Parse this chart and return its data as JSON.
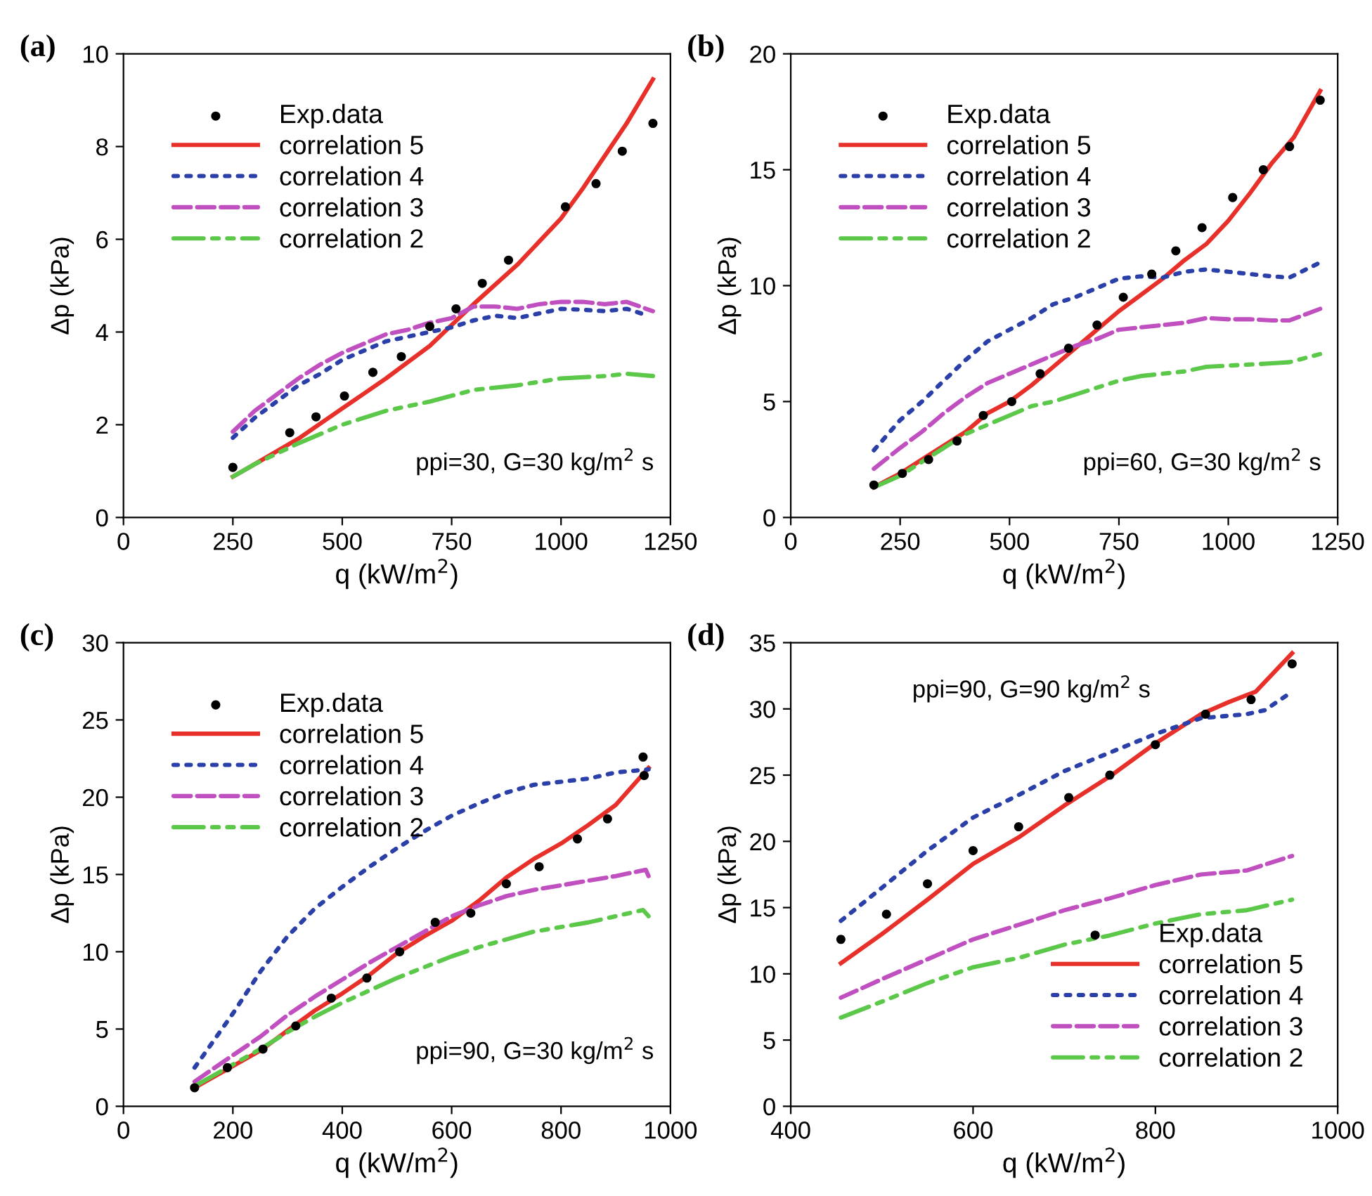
{
  "chart_data": [
    {
      "type": "line",
      "title": "(a)",
      "xlabel": "q (kW/m$^{2}$)",
      "ylabel": "Δp (kPa)",
      "xlim": [
        0,
        1250
      ],
      "xticks": [
        0,
        250,
        500,
        750,
        1000,
        1250
      ],
      "ylim": [
        0,
        10
      ],
      "yticks": [
        0,
        2,
        4,
        6,
        8,
        10
      ],
      "grid": false,
      "legend": "top left",
      "annotations": [
        "ppi=30, G=30 kg/m$^{2}$ s"
      ],
      "series": [
        {
          "name": "Exp.data",
          "type": "scatter",
          "marker": "circle",
          "color": "#000000",
          "x": [
            250,
            380,
            440,
            505,
            570,
            635,
            700,
            760,
            820,
            880,
            1010,
            1080,
            1140,
            1210
          ],
          "values": [
            1.08,
            1.83,
            2.17,
            2.62,
            3.13,
            3.47,
            4.12,
            4.5,
            5.05,
            5.55,
            6.7,
            7.2,
            7.9,
            8.5
          ]
        },
        {
          "name": "correlation 5",
          "line_style": "solid",
          "color": "#e8302a",
          "x": [
            250,
            300,
            400,
            500,
            600,
            700,
            800,
            900,
            1000,
            1050,
            1100,
            1150,
            1210
          ],
          "values": [
            0.88,
            1.15,
            1.7,
            2.35,
            3.0,
            3.7,
            4.6,
            5.45,
            6.45,
            7.1,
            7.8,
            8.5,
            9.45
          ]
        },
        {
          "name": "correlation 4",
          "line_style": "dotted",
          "color": "#2b3fa8",
          "x": [
            250,
            300,
            350,
            400,
            450,
            500,
            550,
            600,
            650,
            700,
            750,
            800,
            850,
            900,
            950,
            1000,
            1050,
            1100,
            1150,
            1200
          ],
          "values": [
            1.72,
            2.15,
            2.5,
            2.85,
            3.1,
            3.4,
            3.6,
            3.8,
            3.9,
            4.0,
            4.1,
            4.25,
            4.35,
            4.3,
            4.4,
            4.5,
            4.48,
            4.45,
            4.5,
            4.35
          ]
        },
        {
          "name": "correlation 3",
          "line_style": "dashed",
          "color": "#c050c0",
          "x": [
            250,
            300,
            350,
            400,
            450,
            500,
            550,
            600,
            650,
            700,
            750,
            800,
            850,
            900,
            950,
            1000,
            1050,
            1100,
            1150,
            1210
          ],
          "values": [
            1.85,
            2.3,
            2.65,
            3.0,
            3.3,
            3.55,
            3.75,
            3.95,
            4.05,
            4.2,
            4.3,
            4.55,
            4.55,
            4.5,
            4.6,
            4.65,
            4.65,
            4.6,
            4.65,
            4.45
          ]
        },
        {
          "name": "correlation 2",
          "line_style": "dashdotdot",
          "color": "#5cc84a",
          "x": [
            250,
            300,
            400,
            500,
            600,
            700,
            800,
            900,
            1000,
            1100,
            1150,
            1210
          ],
          "values": [
            0.88,
            1.15,
            1.6,
            2.0,
            2.3,
            2.5,
            2.75,
            2.85,
            3.0,
            3.05,
            3.1,
            3.05
          ]
        }
      ]
    },
    {
      "type": "line",
      "title": "(b)",
      "xlabel": "q (kW/m$^{2}$)",
      "ylabel": "Δp (kPa)",
      "xlim": [
        0,
        1250
      ],
      "xticks": [
        0,
        250,
        500,
        750,
        1000,
        1250
      ],
      "ylim": [
        0,
        20
      ],
      "yticks": [
        0,
        5,
        10,
        15,
        20
      ],
      "grid": false,
      "legend": "top left",
      "annotations": [
        "ppi=60, G=30 kg/m$^{2}$ s"
      ],
      "series": [
        {
          "name": "Exp.data",
          "type": "scatter",
          "marker": "circle",
          "color": "#000000",
          "x": [
            190,
            255,
            315,
            380,
            440,
            505,
            570,
            635,
            700,
            760,
            825,
            880,
            940,
            1010,
            1080,
            1140,
            1210
          ],
          "values": [
            1.4,
            1.9,
            2.5,
            3.3,
            4.4,
            5.0,
            6.2,
            7.3,
            8.3,
            9.5,
            10.5,
            11.5,
            12.5,
            13.8,
            15.0,
            16.0,
            18.0
          ]
        },
        {
          "name": "correlation 5",
          "line_style": "solid",
          "color": "#e8302a",
          "x": [
            190,
            250,
            300,
            400,
            450,
            500,
            550,
            600,
            650,
            700,
            750,
            800,
            850,
            900,
            950,
            1000,
            1050,
            1100,
            1150,
            1210
          ],
          "values": [
            1.3,
            1.9,
            2.5,
            3.7,
            4.5,
            5.0,
            5.7,
            6.5,
            7.3,
            8.1,
            8.9,
            9.6,
            10.3,
            11.1,
            11.8,
            12.8,
            14.0,
            15.3,
            16.4,
            18.4
          ]
        },
        {
          "name": "correlation 4",
          "line_style": "dotted",
          "color": "#2b3fa8",
          "x": [
            190,
            250,
            300,
            350,
            400,
            450,
            500,
            550,
            600,
            650,
            700,
            750,
            800,
            850,
            900,
            950,
            1000,
            1050,
            1100,
            1140,
            1210
          ],
          "values": [
            2.9,
            4.2,
            5.0,
            5.9,
            6.8,
            7.6,
            8.1,
            8.6,
            9.2,
            9.5,
            9.9,
            10.3,
            10.4,
            10.35,
            10.6,
            10.7,
            10.6,
            10.5,
            10.4,
            10.35,
            11.0
          ]
        },
        {
          "name": "correlation 3",
          "line_style": "dashed",
          "color": "#c050c0",
          "x": [
            190,
            250,
            300,
            350,
            400,
            450,
            500,
            550,
            600,
            650,
            700,
            750,
            800,
            850,
            900,
            950,
            1000,
            1050,
            1100,
            1140,
            1210
          ],
          "values": [
            2.1,
            3.0,
            3.7,
            4.5,
            5.2,
            5.8,
            6.2,
            6.6,
            7.0,
            7.4,
            7.7,
            8.1,
            8.2,
            8.3,
            8.4,
            8.6,
            8.55,
            8.55,
            8.5,
            8.5,
            9.0
          ]
        },
        {
          "name": "correlation 2",
          "line_style": "dashdotdot",
          "color": "#5cc84a",
          "x": [
            190,
            250,
            300,
            350,
            400,
            450,
            500,
            550,
            600,
            650,
            700,
            750,
            800,
            900,
            950,
            1000,
            1100,
            1140,
            1210
          ],
          "values": [
            1.3,
            1.8,
            2.4,
            3.0,
            3.6,
            4.0,
            4.4,
            4.8,
            5.0,
            5.3,
            5.6,
            5.9,
            6.1,
            6.3,
            6.5,
            6.55,
            6.65,
            6.7,
            7.05
          ]
        }
      ]
    },
    {
      "type": "line",
      "title": "(c)",
      "xlabel": "q (kW/m$^{2}$)",
      "ylabel": "Δp (kPa)",
      "xlim": [
        0,
        1000
      ],
      "xticks": [
        0,
        200,
        400,
        600,
        800,
        1000
      ],
      "ylim": [
        0,
        30
      ],
      "yticks": [
        0,
        5,
        10,
        15,
        20,
        25,
        30
      ],
      "grid": false,
      "legend": "top left",
      "annotations": [
        "ppi=90, G=30 kg/m$^{2}$ s"
      ],
      "series": [
        {
          "name": "Exp.data",
          "type": "scatter",
          "marker": "circle",
          "color": "#000000",
          "x": [
            130,
            190,
            255,
            315,
            380,
            445,
            505,
            570,
            635,
            700,
            760,
            830,
            885,
            950,
            952
          ],
          "values": [
            1.2,
            2.5,
            3.7,
            5.2,
            7.0,
            8.3,
            10.0,
            11.9,
            12.5,
            14.4,
            15.5,
            17.3,
            18.6,
            22.6,
            21.4
          ]
        },
        {
          "name": "correlation 5",
          "line_style": "solid",
          "color": "#e8302a",
          "x": [
            130,
            200,
            250,
            300,
            350,
            400,
            450,
            500,
            550,
            600,
            650,
            700,
            750,
            800,
            850,
            900,
            960
          ],
          "values": [
            1.2,
            2.6,
            3.6,
            4.9,
            6.2,
            7.3,
            8.5,
            9.9,
            11.0,
            12.0,
            13.3,
            14.8,
            16.0,
            17.0,
            18.2,
            19.5,
            21.9
          ]
        },
        {
          "name": "correlation 4",
          "line_style": "dotted",
          "color": "#2b3fa8",
          "x": [
            130,
            200,
            250,
            300,
            350,
            400,
            450,
            500,
            550,
            600,
            650,
            700,
            750,
            800,
            850,
            900,
            960
          ],
          "values": [
            2.5,
            6.0,
            8.7,
            11.0,
            12.8,
            14.2,
            15.5,
            16.7,
            17.8,
            18.8,
            19.6,
            20.3,
            20.8,
            21.0,
            21.2,
            21.6,
            21.8
          ]
        },
        {
          "name": "correlation 3",
          "line_style": "dashed",
          "color": "#c050c0",
          "x": [
            130,
            200,
            250,
            300,
            350,
            400,
            450,
            500,
            550,
            600,
            650,
            700,
            750,
            800,
            850,
            900,
            955,
            960
          ],
          "values": [
            1.6,
            3.3,
            4.5,
            5.9,
            7.1,
            8.2,
            9.3,
            10.3,
            11.3,
            12.3,
            13.0,
            13.6,
            14.0,
            14.3,
            14.6,
            14.9,
            15.3,
            14.9
          ]
        },
        {
          "name": "correlation 2",
          "line_style": "dashdotdot",
          "color": "#5cc84a",
          "x": [
            130,
            200,
            250,
            300,
            350,
            400,
            450,
            500,
            550,
            600,
            650,
            700,
            750,
            800,
            850,
            900,
            950,
            960
          ],
          "values": [
            1.3,
            2.7,
            3.7,
            4.8,
            5.8,
            6.7,
            7.5,
            8.3,
            9.0,
            9.7,
            10.3,
            10.8,
            11.3,
            11.6,
            11.9,
            12.3,
            12.7,
            12.3
          ]
        }
      ]
    },
    {
      "type": "line",
      "title": "(d)",
      "xlabel": "q (kW/m$^{2}$)",
      "ylabel": "Δp (kPa)",
      "xlim": [
        400,
        1000
      ],
      "xticks": [
        400,
        600,
        800,
        1000
      ],
      "ylim": [
        0,
        35
      ],
      "yticks": [
        0,
        5,
        10,
        15,
        20,
        25,
        30,
        35
      ],
      "grid": false,
      "legend": "bottom right",
      "annotations": [
        "ppi=90, G=90 kg/m$^{2}$ s"
      ],
      "series": [
        {
          "name": "Exp.data",
          "type": "scatter",
          "marker": "circle",
          "color": "#000000",
          "x": [
            455,
            505,
            550,
            600,
            650,
            705,
            750,
            800,
            855,
            905,
            950
          ],
          "values": [
            12.6,
            14.5,
            16.8,
            19.3,
            21.1,
            23.3,
            25.0,
            27.3,
            29.6,
            30.7,
            33.4
          ]
        },
        {
          "name": "correlation 5",
          "line_style": "solid",
          "color": "#e8302a",
          "x": [
            455,
            500,
            550,
            600,
            650,
            700,
            750,
            800,
            850,
            880,
            910,
            950
          ],
          "values": [
            10.8,
            13.0,
            15.6,
            18.3,
            20.3,
            22.7,
            24.9,
            27.4,
            29.6,
            30.5,
            31.3,
            34.2
          ]
        },
        {
          "name": "correlation 4",
          "line_style": "dotted",
          "color": "#2b3fa8",
          "x": [
            455,
            500,
            550,
            600,
            650,
            700,
            750,
            800,
            850,
            900,
            920,
            950
          ],
          "values": [
            14.0,
            16.5,
            19.3,
            21.8,
            23.5,
            25.3,
            26.7,
            28.1,
            29.3,
            29.6,
            29.9,
            31.3
          ]
        },
        {
          "name": "correlation 3",
          "line_style": "dashed",
          "color": "#c050c0",
          "x": [
            455,
            500,
            550,
            600,
            650,
            700,
            750,
            800,
            850,
            900,
            950
          ],
          "values": [
            8.2,
            9.6,
            11.1,
            12.6,
            13.7,
            14.8,
            15.7,
            16.7,
            17.5,
            17.8,
            18.9
          ]
        },
        {
          "name": "correlation 2",
          "line_style": "dashdotdot",
          "color": "#5cc84a",
          "x": [
            455,
            500,
            550,
            600,
            650,
            700,
            750,
            800,
            850,
            900,
            950
          ],
          "values": [
            6.7,
            7.9,
            9.3,
            10.5,
            11.2,
            12.2,
            12.9,
            13.8,
            14.5,
            14.8,
            15.6
          ]
        }
      ]
    }
  ]
}
